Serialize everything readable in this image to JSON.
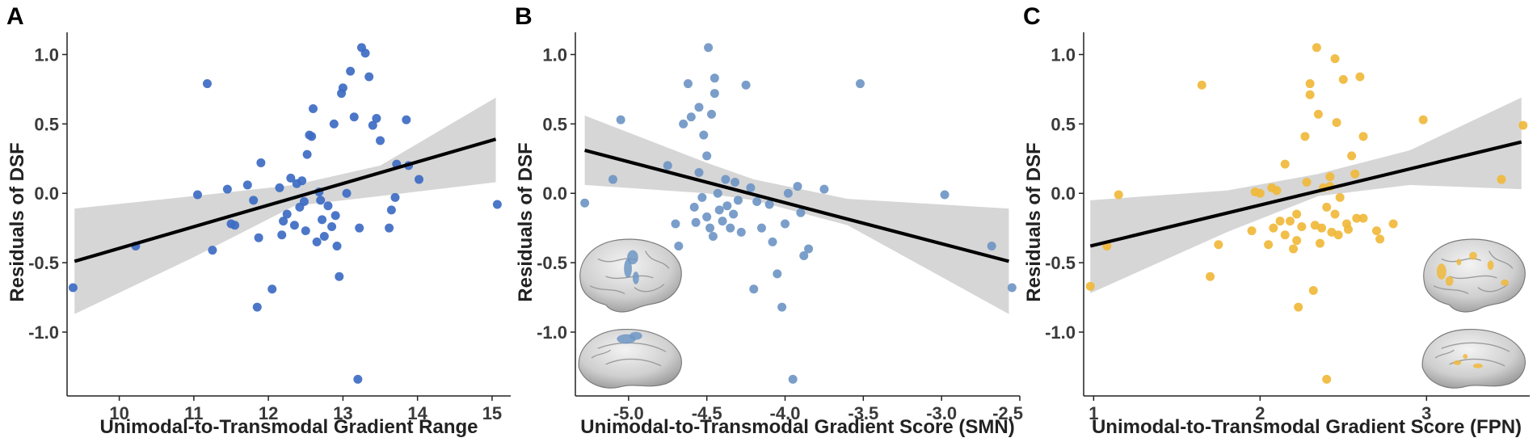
{
  "chart_data": [
    {
      "panel": "A",
      "type": "scatter",
      "xlabel": "Unimodal-to-Transmodal Gradient Range",
      "ylabel": "Residuals of DSF",
      "xlim": [
        9.3,
        15.25
      ],
      "ylim": [
        -1.46,
        1.16
      ],
      "xticks": [
        10,
        11,
        12,
        13,
        14,
        15
      ],
      "xtick_labels": [
        "10",
        "11",
        "12",
        "13",
        "14",
        "15"
      ],
      "yticks": [
        1.0,
        0.5,
        0.0,
        -0.5,
        -1.0
      ],
      "ytick_labels": [
        "1.0",
        "0.5",
        "0.0",
        "-0.5",
        "-1.0"
      ],
      "point_color": "#3d6bc3",
      "brain_inset": false,
      "fit": {
        "x": [
          9.4,
          15.05
        ],
        "y": [
          -0.49,
          0.39
        ]
      },
      "ci": {
        "x": [
          9.4,
          11.0,
          12.35,
          13.5,
          15.05
        ],
        "upper": [
          -0.11,
          -0.02,
          0.06,
          0.2,
          0.69
        ],
        "lower": [
          -0.87,
          -0.46,
          -0.09,
          -0.02,
          0.08
        ]
      },
      "x": [
        9.38,
        10.22,
        11.05,
        11.18,
        11.25,
        11.45,
        11.5,
        11.55,
        11.72,
        11.8,
        11.85,
        11.87,
        11.9,
        12.05,
        12.15,
        12.18,
        12.2,
        12.25,
        12.3,
        12.35,
        12.38,
        12.42,
        12.45,
        12.48,
        12.5,
        12.52,
        12.55,
        12.58,
        12.6,
        12.65,
        12.68,
        12.7,
        12.72,
        12.75,
        12.8,
        12.85,
        12.88,
        12.9,
        12.92,
        12.95,
        12.98,
        13.0,
        13.05,
        13.1,
        13.15,
        13.2,
        13.22,
        13.25,
        13.3,
        13.35,
        13.4,
        13.45,
        13.5,
        13.62,
        13.65,
        13.7,
        13.72,
        13.85,
        13.88,
        14.02,
        15.07
      ],
      "y": [
        -0.68,
        -0.38,
        -0.01,
        0.79,
        -0.41,
        0.03,
        -0.22,
        -0.23,
        0.06,
        -0.05,
        -0.82,
        -0.32,
        0.22,
        -0.69,
        0.04,
        -0.3,
        -0.2,
        -0.15,
        0.11,
        -0.23,
        0.07,
        -0.1,
        0.09,
        -0.06,
        -0.27,
        0.28,
        0.42,
        0.41,
        0.61,
        -0.35,
        0.01,
        -0.05,
        -0.19,
        -0.31,
        -0.09,
        -0.24,
        0.5,
        -0.16,
        -0.38,
        -0.6,
        0.72,
        0.76,
        0.0,
        0.88,
        0.55,
        -1.34,
        -0.25,
        1.05,
        1.01,
        0.84,
        0.49,
        0.54,
        0.38,
        -0.25,
        -0.12,
        -0.03,
        0.21,
        0.53,
        0.2,
        0.1,
        -0.08
      ]
    },
    {
      "panel": "B",
      "type": "scatter",
      "xlabel": "Unimodal-to-Transmodal Gradient Score (SMN)",
      "ylabel": "Residuals of DSF",
      "xlim": [
        -5.34,
        -2.5
      ],
      "ylim": [
        -1.46,
        1.16
      ],
      "xticks": [
        -5.0,
        -4.5,
        -4.0,
        -3.5,
        -3.0,
        -2.5
      ],
      "xtick_labels": [
        "-5.0",
        "-4.5",
        "-4.0",
        "-3.5",
        "-3.0",
        "-2.5"
      ],
      "yticks": [
        1.0,
        0.5,
        0.0,
        -0.5,
        -1.0
      ],
      "ytick_labels": [
        "1.0",
        "0.5",
        "0.0",
        "-0.5",
        "-1.0"
      ],
      "point_color": "#6f96c4",
      "brain_inset": true,
      "fit": {
        "x": [
          -5.28,
          -2.57
        ],
        "y": [
          0.31,
          -0.49
        ]
      },
      "ci": {
        "x": [
          -5.28,
          -4.5,
          -4.2,
          -3.6,
          -2.57
        ],
        "upper": [
          0.56,
          0.22,
          0.1,
          -0.04,
          -0.11
        ],
        "lower": [
          0.06,
          0.0,
          -0.05,
          -0.23,
          -0.87
        ]
      },
      "x": [
        -5.28,
        -5.1,
        -5.05,
        -4.75,
        -4.7,
        -4.68,
        -4.65,
        -4.62,
        -4.6,
        -4.58,
        -4.57,
        -4.55,
        -4.55,
        -4.53,
        -4.52,
        -4.5,
        -4.5,
        -4.49,
        -4.48,
        -4.47,
        -4.46,
        -4.45,
        -4.45,
        -4.43,
        -4.42,
        -4.4,
        -4.38,
        -4.37,
        -4.35,
        -4.33,
        -4.32,
        -4.3,
        -4.28,
        -4.25,
        -4.22,
        -4.2,
        -4.18,
        -4.15,
        -4.1,
        -4.08,
        -4.05,
        -4.02,
        -4.0,
        -3.98,
        -3.95,
        -3.92,
        -3.9,
        -3.88,
        -3.85,
        -3.75,
        -3.52,
        -2.98,
        -2.68,
        -2.55
      ],
      "y": [
        -0.07,
        0.1,
        0.53,
        0.2,
        -0.22,
        -0.38,
        0.5,
        0.79,
        0.55,
        -0.1,
        -0.21,
        0.62,
        0.15,
        -0.03,
        0.42,
        -0.17,
        0.27,
        1.05,
        -0.25,
        0.57,
        -0.31,
        0.83,
        0.72,
        0.0,
        -0.12,
        -0.2,
        0.1,
        -0.09,
        -0.25,
        -0.15,
        0.08,
        -0.05,
        -0.28,
        0.78,
        0.04,
        -0.69,
        -0.06,
        -0.25,
        -0.08,
        -0.35,
        -0.58,
        -0.82,
        -0.22,
        0.0,
        -1.34,
        0.05,
        -0.14,
        -0.45,
        -0.4,
        0.03,
        0.79,
        -0.01,
        -0.38,
        -0.68
      ]
    },
    {
      "panel": "C",
      "type": "scatter",
      "xlabel": "Unimodal-to-Transmodal Gradient Score (FPN)",
      "ylabel": "Residuals of DSF",
      "xlim": [
        0.94,
        3.62
      ],
      "ylim": [
        -1.46,
        1.16
      ],
      "xticks": [
        1,
        2,
        3
      ],
      "xtick_labels": [
        "1",
        "2",
        "3"
      ],
      "yticks": [
        1.0,
        0.5,
        0.0,
        -0.5,
        -1.0
      ],
      "ytick_labels": [
        "1.0",
        "0.5",
        "0.0",
        "-0.5",
        "-1.0"
      ],
      "point_color": "#f0b83a",
      "brain_inset": true,
      "fit": {
        "x": [
          0.98,
          3.57
        ],
        "y": [
          -0.38,
          0.37
        ]
      },
      "ci": {
        "x": [
          0.98,
          1.8,
          2.35,
          2.9,
          3.57
        ],
        "upper": [
          -0.05,
          0.02,
          0.14,
          0.31,
          0.69
        ],
        "lower": [
          -0.72,
          -0.28,
          -0.02,
          0.06,
          0.03
        ]
      },
      "x": [
        0.98,
        1.08,
        1.15,
        1.65,
        1.7,
        1.75,
        1.95,
        1.97,
        2.0,
        2.05,
        2.07,
        2.08,
        2.1,
        2.12,
        2.15,
        2.15,
        2.18,
        2.2,
        2.22,
        2.22,
        2.23,
        2.25,
        2.27,
        2.28,
        2.3,
        2.3,
        2.32,
        2.33,
        2.34,
        2.35,
        2.36,
        2.37,
        2.38,
        2.4,
        2.4,
        2.42,
        2.42,
        2.43,
        2.45,
        2.45,
        2.46,
        2.47,
        2.48,
        2.5,
        2.52,
        2.53,
        2.55,
        2.57,
        2.58,
        2.6,
        2.62,
        2.62,
        2.7,
        2.72,
        2.8,
        2.98,
        3.45,
        3.58
      ],
      "y": [
        -0.67,
        -0.38,
        -0.01,
        0.78,
        -0.6,
        -0.37,
        -0.27,
        0.01,
        0.0,
        -0.37,
        0.04,
        -0.25,
        0.02,
        -0.2,
        0.21,
        -0.3,
        -0.2,
        -0.4,
        -0.15,
        -0.34,
        -0.82,
        -0.24,
        0.41,
        0.08,
        0.79,
        0.71,
        -0.7,
        -0.23,
        1.05,
        0.57,
        -0.36,
        -0.25,
        0.04,
        -0.1,
        -1.34,
        0.05,
        0.12,
        -0.28,
        -0.15,
        0.97,
        0.51,
        -0.3,
        -0.03,
        0.82,
        -0.22,
        -0.26,
        0.27,
        0.14,
        -0.18,
        0.84,
        0.41,
        -0.18,
        -0.27,
        -0.33,
        -0.22,
        0.53,
        0.1,
        0.49
      ]
    }
  ]
}
